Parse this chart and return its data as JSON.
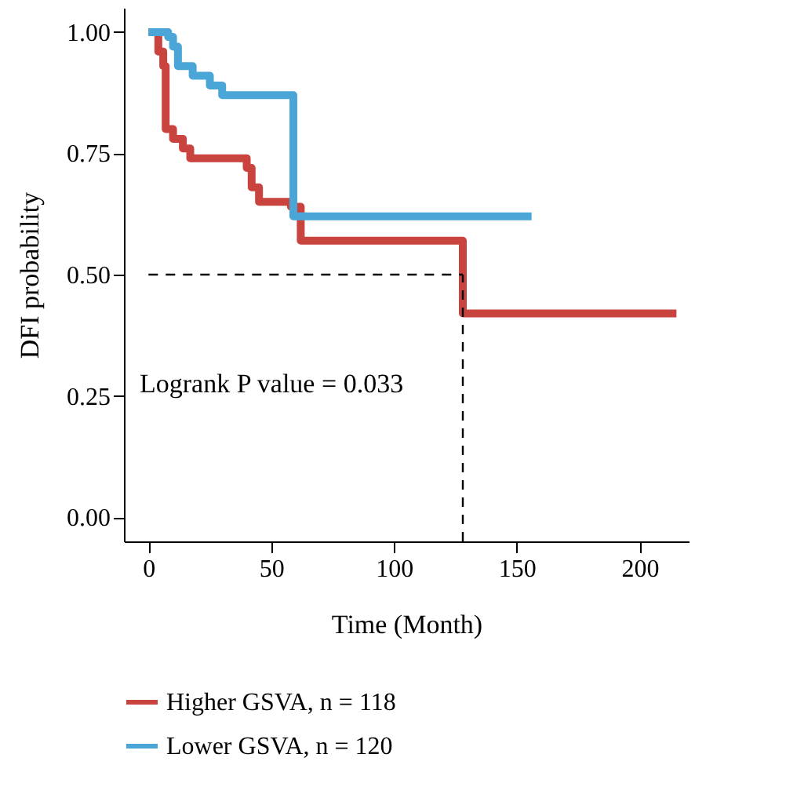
{
  "chart_data": {
    "type": "step",
    "xlabel": "Time (Month)",
    "ylabel": "DFI probability",
    "xlim": [
      -10,
      220
    ],
    "ylim": [
      -0.05,
      1.05
    ],
    "xticks": [
      0,
      50,
      100,
      150,
      200
    ],
    "yticks": [
      {
        "value": 0,
        "label": "0.00"
      },
      {
        "value": 0.25,
        "label": "0.25"
      },
      {
        "value": 0.5,
        "label": "0.50"
      },
      {
        "value": 0.75,
        "label": "0.75"
      },
      {
        "value": 1,
        "label": "1.00"
      }
    ],
    "series": [
      {
        "name": "Higher GSVA, n = 118",
        "color": "#c9443f",
        "x": [
          0,
          4,
          6,
          7,
          10,
          14,
          17,
          40,
          42,
          45,
          58,
          62,
          128,
          215
        ],
        "values": [
          1.0,
          0.96,
          0.93,
          0.8,
          0.78,
          0.76,
          0.74,
          0.72,
          0.68,
          0.65,
          0.64,
          0.57,
          0.42,
          0.42
        ]
      },
      {
        "name": "Lower GSVA, n = 120",
        "color": "#4ba6d8",
        "x": [
          0,
          8,
          10,
          12,
          18,
          25,
          30,
          59,
          156
        ],
        "values": [
          1.0,
          0.99,
          0.97,
          0.93,
          0.91,
          0.89,
          0.87,
          0.62,
          0.62
        ]
      }
    ],
    "ref_lines": [
      {
        "axis": "y",
        "value": 0.5,
        "line_style": "dashed",
        "color": "#000000"
      },
      {
        "axis": "x",
        "value": 128,
        "line_style": "dashed",
        "color": "#000000"
      }
    ],
    "annotations": [
      "Logrank P value = 0.033"
    ],
    "legend": "bottom left",
    "grid": false
  }
}
